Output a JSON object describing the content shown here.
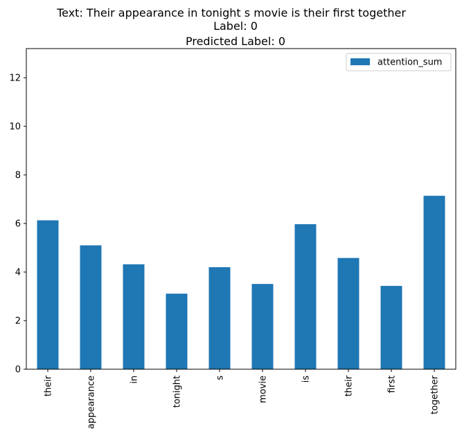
{
  "chart_data": {
    "type": "bar",
    "title_lines": [
      "Text: Their appearance in tonight s movie is their first together",
      "Label: 0",
      "Predicted Label: 0"
    ],
    "xlabel": "",
    "ylabel": "",
    "categories": [
      "their",
      "appearance",
      "in",
      "tonight",
      "s",
      "movie",
      "is",
      "their",
      "first",
      "together"
    ],
    "series": [
      {
        "name": "attention_sum",
        "color": "#1f77b4",
        "values": [
          6.13,
          5.1,
          4.32,
          3.11,
          4.2,
          3.51,
          5.97,
          4.58,
          3.43,
          7.14
        ]
      }
    ],
    "ylim": [
      0,
      13.2
    ],
    "yticks": [
      0,
      2,
      4,
      6,
      8,
      10,
      12
    ],
    "grid": false,
    "legend_position": "top-right"
  }
}
